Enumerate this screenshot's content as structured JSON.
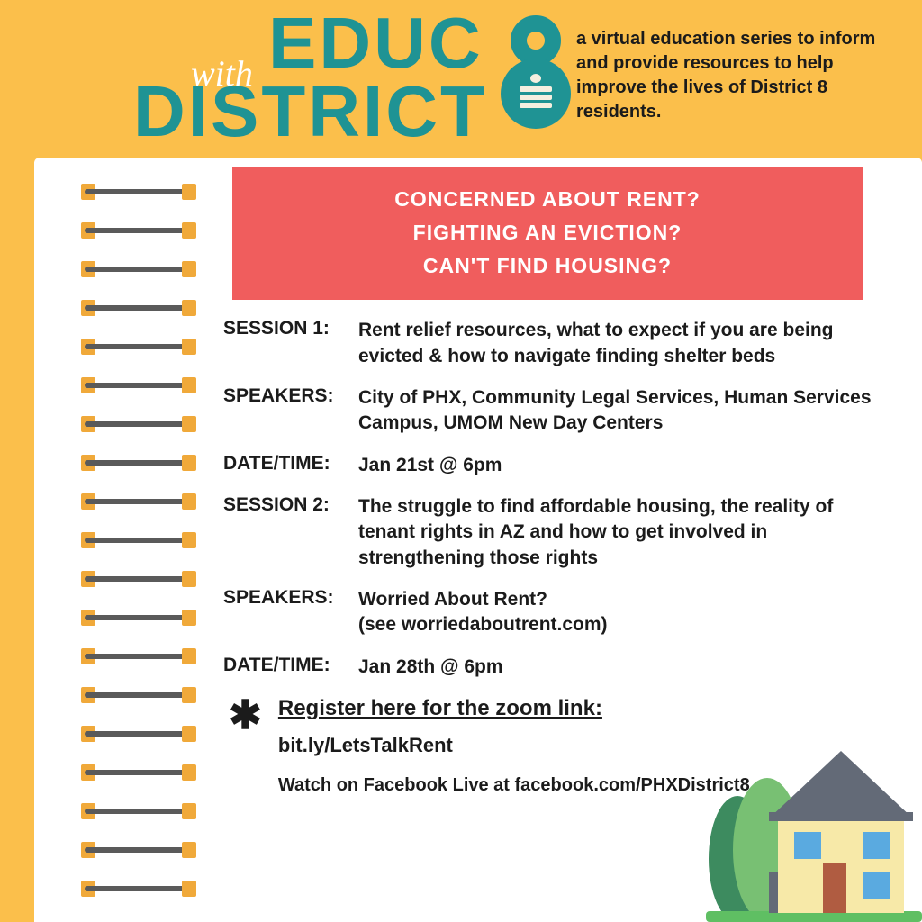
{
  "colors": {
    "page_bg": "#fbbf4b",
    "teal": "#1f9394",
    "red_box": "#f05d5d",
    "dark_text": "#1b1b1b",
    "notebook_bg": "#ffffff",
    "spiral_bar": "#5a5a5a",
    "spiral_cap": "#f0a93a",
    "house_wall": "#f7e9a8",
    "house_roof": "#636a77",
    "house_window": "#5aaae0",
    "house_door": "#b05c41",
    "tree_dark": "#3d8b5f",
    "tree_light": "#78c073",
    "grass": "#5fbf63",
    "book_col": "#f5efe0"
  },
  "logo": {
    "with": "with",
    "educ": "EDUC",
    "district": "DISTRICT",
    "eight": "8"
  },
  "tagline": "a virtual education series to inform and provide resources to help improve the lives of District 8 residents.",
  "red_box": {
    "l1": "CONCERNED ABOUT RENT?",
    "l2": "FIGHTING AN EVICTION?",
    "l3": "CAN'T FIND HOUSING?"
  },
  "rows": [
    {
      "label": "SESSION 1:",
      "value": "Rent relief resources, what to expect if you are being evicted & how to navigate finding shelter beds"
    },
    {
      "label": "SPEAKERS:",
      "value": "City of PHX, Community Legal Services, Human Services Campus, UMOM New Day Centers"
    },
    {
      "label": "DATE/TIME:",
      "value": "Jan 21st @ 6pm"
    },
    {
      "label": "SESSION 2:",
      "value": "The struggle to find affordable housing, the reality of tenant rights in AZ and how to get involved in strengthening those rights"
    },
    {
      "label": "SPEAKERS:",
      "value": "Worried About Rent?\n(see worriedaboutrent.com)"
    },
    {
      "label": "DATE/TIME:",
      "value": "Jan 28th @ 6pm"
    }
  ],
  "register": {
    "line1": "Register here for the zoom link:",
    "line2": "bit.ly/LetsTalkRent",
    "line3": "Watch on Facebook Live at facebook.com/PHXDistrict8"
  },
  "spiral_count": 19,
  "typography": {
    "logo_fontsize": 80,
    "tagline_fontsize": 20,
    "redbox_fontsize": 23,
    "row_fontsize": 21
  }
}
